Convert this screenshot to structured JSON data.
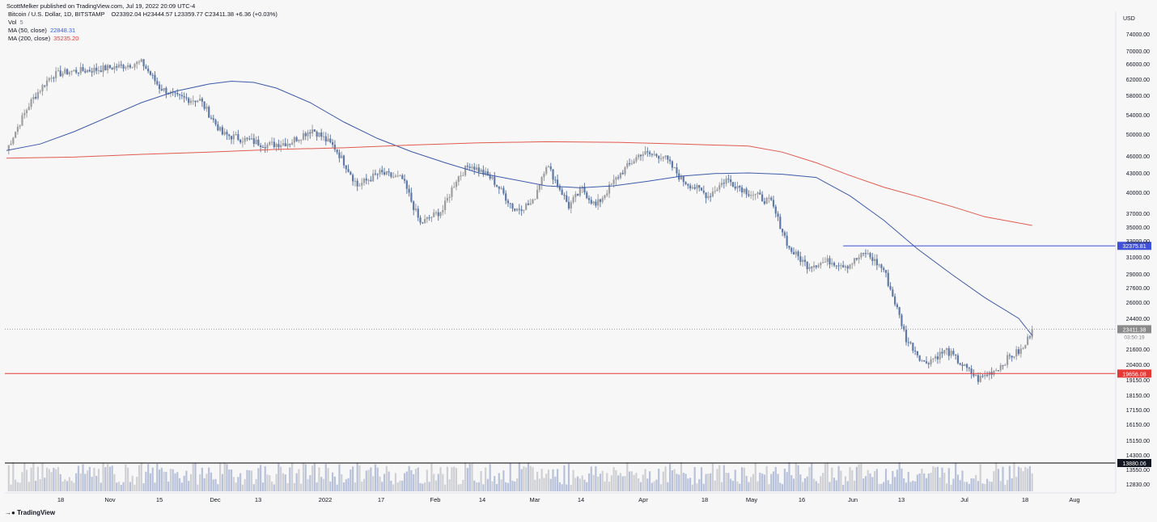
{
  "header": {
    "published": "ScottMelker published on TradingView.com, Jul 19, 2022 20:09 UTC-4",
    "symbol": "Bitcoin / U.S. Dollar, 1D, BITSTAMP",
    "ohlc": "O23392.04  H23444.57  L23359.77  C23411.38  +6.36 (+0.03%)",
    "vol_label": "Vol",
    "vol_value": "5",
    "ma50_label": "MA (50, close)",
    "ma50_value": "22848.31",
    "ma200_label": "MA (200, close)",
    "ma200_value": "35235.20"
  },
  "footer": {
    "brand": "TradingView"
  },
  "colors": {
    "up": "#9e9e9e",
    "down": "#5e79a7",
    "ma50": "#3d5ba8",
    "ma200": "#e05a4d",
    "resistance": "#3f51d8",
    "support": "#e53935",
    "volume_up": "#cfd0d3",
    "volume_down": "#b7c2da"
  },
  "chart_data": {
    "type": "candlestick",
    "currency_label": "USD",
    "y_ticks": [
      "74000.00",
      "70000.00",
      "66000.00",
      "62000.00",
      "58000.00",
      "54000.00",
      "50000.00",
      "46000.00",
      "43000.00",
      "40000.00",
      "37000.00",
      "35000.00",
      "33000.00",
      "31000.00",
      "29000.00",
      "27600.00",
      "26000.00",
      "24400.00",
      "21600.00",
      "20400.00",
      "19150.00",
      "18150.00",
      "17150.00",
      "16150.00",
      "15150.00",
      "14300.00",
      "13550.00",
      "12830.00"
    ],
    "x_ticks": [
      "18",
      "Nov",
      "15",
      "Dec",
      "13",
      "2022",
      "17",
      "Feb",
      "14",
      "Mar",
      "14",
      "Apr",
      "18",
      "May",
      "16",
      "Jun",
      "13",
      "Jul",
      "18",
      "Aug"
    ],
    "price_levels": [
      {
        "label": "32375.81",
        "value": 32375.81,
        "role": "resistance"
      },
      {
        "label": "19656.08",
        "value": 19656.08,
        "role": "support"
      },
      {
        "label": "23411.38",
        "value": 23411.38,
        "role": "last-price"
      },
      {
        "label": "13880.06",
        "value": 13880.06,
        "role": "volume-level"
      }
    ],
    "last_price_countdown": "03:50:19",
    "series": [
      {
        "name": "MA (50, close)",
        "current": 22848.31,
        "points": [
          [
            0,
            47000
          ],
          [
            15,
            48200
          ],
          [
            30,
            50500
          ],
          [
            45,
            53500
          ],
          [
            60,
            56500
          ],
          [
            75,
            59000
          ],
          [
            90,
            60800
          ],
          [
            100,
            61500
          ],
          [
            110,
            61200
          ],
          [
            120,
            59800
          ],
          [
            135,
            56500
          ],
          [
            150,
            52500
          ],
          [
            165,
            49200
          ],
          [
            180,
            46800
          ],
          [
            195,
            44800
          ],
          [
            210,
            43000
          ],
          [
            225,
            42000
          ],
          [
            240,
            41000
          ],
          [
            255,
            40700
          ],
          [
            270,
            41000
          ],
          [
            285,
            41700
          ],
          [
            300,
            42500
          ],
          [
            315,
            42900
          ],
          [
            330,
            43000
          ],
          [
            345,
            42800
          ],
          [
            360,
            42300
          ],
          [
            375,
            39500
          ],
          [
            390,
            36000
          ],
          [
            405,
            32000
          ],
          [
            420,
            29000
          ],
          [
            435,
            26500
          ],
          [
            450,
            24400
          ],
          [
            456,
            22848
          ]
        ]
      },
      {
        "name": "MA (200, close)",
        "current": 35235.2,
        "points": [
          [
            0,
            45600
          ],
          [
            30,
            45800
          ],
          [
            60,
            46300
          ],
          [
            90,
            46700
          ],
          [
            120,
            47200
          ],
          [
            150,
            47500
          ],
          [
            180,
            48000
          ],
          [
            210,
            48400
          ],
          [
            240,
            48600
          ],
          [
            270,
            48500
          ],
          [
            300,
            48200
          ],
          [
            330,
            47800
          ],
          [
            345,
            46700
          ],
          [
            360,
            44800
          ],
          [
            375,
            42600
          ],
          [
            390,
            40800
          ],
          [
            405,
            39400
          ],
          [
            420,
            38000
          ],
          [
            435,
            36500
          ],
          [
            456,
            35235
          ]
        ]
      }
    ],
    "anchors": [
      [
        0,
        47000
      ],
      [
        10,
        56000
      ],
      [
        20,
        63000
      ],
      [
        28,
        64000
      ],
      [
        40,
        64500
      ],
      [
        52,
        65500
      ],
      [
        60,
        66500
      ],
      [
        68,
        60000
      ],
      [
        76,
        57500
      ],
      [
        86,
        57000
      ],
      [
        96,
        50000
      ],
      [
        106,
        49000
      ],
      [
        116,
        48000
      ],
      [
        126,
        48500
      ],
      [
        136,
        51000
      ],
      [
        146,
        47500
      ],
      [
        156,
        41000
      ],
      [
        166,
        43000
      ],
      [
        176,
        42000
      ],
      [
        184,
        35500
      ],
      [
        194,
        37500
      ],
      [
        200,
        42000
      ],
      [
        206,
        44500
      ],
      [
        216,
        42000
      ],
      [
        226,
        37500
      ],
      [
        234,
        38500
      ],
      [
        240,
        44500
      ],
      [
        250,
        38000
      ],
      [
        256,
        40500
      ],
      [
        262,
        38000
      ],
      [
        272,
        42500
      ],
      [
        282,
        46500
      ],
      [
        292,
        46000
      ],
      [
        300,
        42000
      ],
      [
        312,
        39500
      ],
      [
        320,
        42000
      ],
      [
        330,
        40000
      ],
      [
        340,
        38500
      ],
      [
        348,
        32000
      ],
      [
        356,
        30000
      ],
      [
        366,
        30500
      ],
      [
        374,
        30000
      ],
      [
        382,
        31500
      ],
      [
        390,
        29500
      ],
      [
        400,
        22500
      ],
      [
        408,
        20500
      ],
      [
        418,
        21500
      ],
      [
        424,
        20500
      ],
      [
        432,
        19200
      ],
      [
        440,
        20000
      ],
      [
        446,
        21000
      ],
      [
        452,
        21600
      ],
      [
        456,
        23411
      ]
    ]
  }
}
